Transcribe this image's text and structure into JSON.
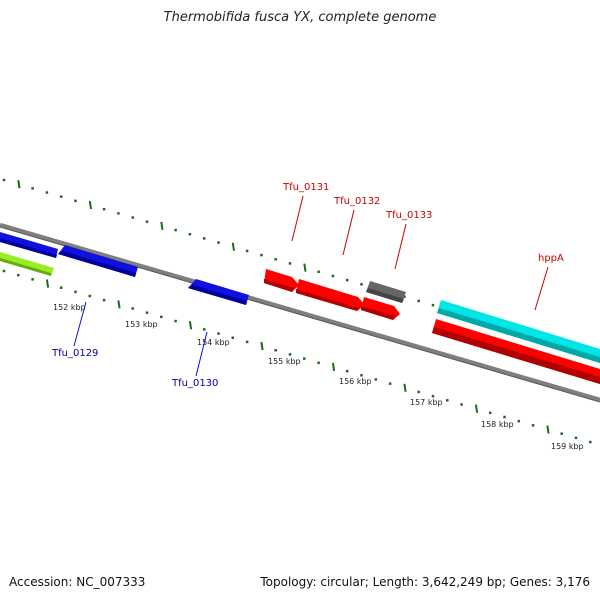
{
  "title": "Thermobifida fusca YX, complete genome",
  "accession": "Accession: NC_007333",
  "summary": "Topology: circular; Length: 3,642,249 bp; Genes: 3,176",
  "colors": {
    "backbone": "#7f7f7f",
    "tick_dot": "#1a6b1a",
    "tick_major": "#1a6b1a",
    "forward_label": "#cc0000",
    "reverse_label": "#00009e"
  },
  "ticks": {
    "labels": [
      "152 kbp",
      "153 kbp",
      "154 kbp",
      "155 kbp",
      "156 kbp",
      "157 kbp",
      "158 kbp",
      "159 kbp"
    ]
  },
  "genes": [
    {
      "name": "Tfu_0129",
      "strand": "reverse",
      "color": "#1010e0",
      "labeled": true
    },
    {
      "name": "Tfu_0130",
      "strand": "reverse",
      "color": "#1010e0",
      "labeled": true
    },
    {
      "name": "Tfu_0131",
      "strand": "forward",
      "color": "#ff0000",
      "labeled": true
    },
    {
      "name": "Tfu_0132",
      "strand": "forward",
      "color": "#ff0000",
      "labeled": true
    },
    {
      "name": "Tfu_0133",
      "strand": "forward",
      "color": "#666666",
      "labeled": true
    },
    {
      "name": "hppA",
      "strand": "forward",
      "color": "#00e5e5",
      "labeled": true
    }
  ]
}
